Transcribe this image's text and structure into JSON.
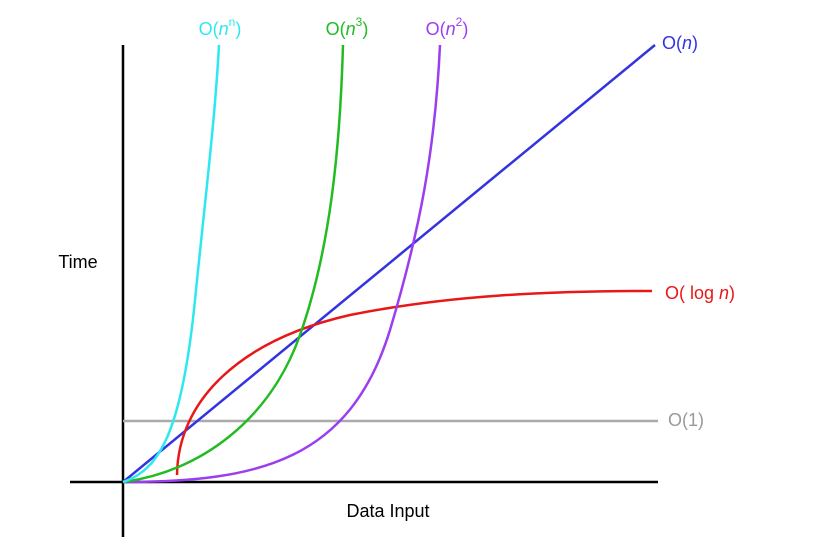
{
  "axes": {
    "y_label": "Time",
    "x_label": "Data Input"
  },
  "curves": [
    {
      "parts": [
        "O(",
        "n",
        "n",
        ")"
      ]
    },
    {
      "parts": [
        "O(",
        "n",
        "3",
        ")"
      ]
    },
    {
      "parts": [
        "O(",
        "n",
        "2",
        ")"
      ]
    },
    {
      "parts": [
        "O(",
        "n",
        ")"
      ]
    },
    {
      "parts": [
        "O( log ",
        "n",
        ")"
      ]
    },
    {
      "parts": [
        "O(1)"
      ]
    }
  ]
}
